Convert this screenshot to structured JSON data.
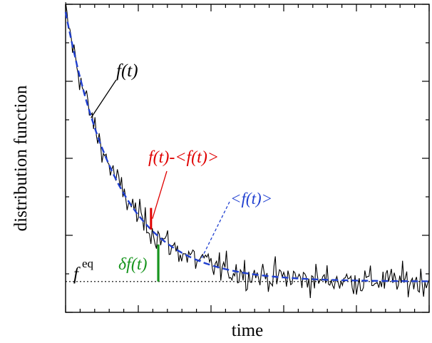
{
  "chart_data": {
    "type": "line",
    "xlabel": "time",
    "ylabel": "distribution function",
    "x_tick_labels": "none",
    "y_tick_labels": "none",
    "xlim": [
      0,
      1
    ],
    "ylim": [
      -0.4,
      3.6
    ],
    "grid": false,
    "series": [
      {
        "name": "f(t)",
        "style": "solid",
        "color": "#000000",
        "model": {
          "type": "exponential_decay_plus_noise",
          "amplitude": 3.5,
          "rate": 7.0,
          "baseline": 0.0,
          "noise_sd": 0.17,
          "points": 260
        }
      },
      {
        "name": "<f(t)>",
        "style": "dashed",
        "color": "#1f3fd0",
        "model": {
          "type": "exponential_decay",
          "amplitude": 3.5,
          "rate": 7.0,
          "baseline": 0.0
        }
      }
    ],
    "reference_line": {
      "label": "f^eq",
      "y": 0.0,
      "style": "dotted",
      "color": "#000000"
    },
    "annotations": [
      {
        "kind": "deviation",
        "label": "f(t)-<f(t)>",
        "color": "#e00000",
        "x": 0.235
      },
      {
        "kind": "fluctuation",
        "label": "δf(t)",
        "color": "#17951e",
        "x": 0.255
      }
    ],
    "labels": {
      "f": "f(t)",
      "avg": "<f(t)>",
      "dev": "f(t)-<f(t)>",
      "delta": "δf(t)",
      "feq": "f",
      "feq_sup": "eq"
    }
  }
}
